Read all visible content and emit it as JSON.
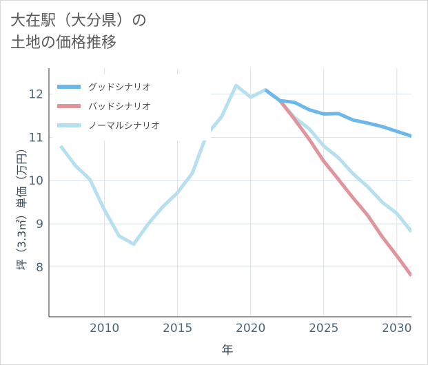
{
  "title": {
    "line1": "大在駅（大分県）の",
    "line2": "土地の価格推移"
  },
  "chart_data": {
    "type": "line",
    "xlabel": "年",
    "ylabel": "坪（3.3㎡）単価（万円）",
    "xlim": [
      2006.2,
      2031
    ],
    "ylim": [
      6.85,
      12.6
    ],
    "xticks": [
      2010,
      2015,
      2020,
      2025,
      2030
    ],
    "yticks": [
      8,
      9,
      10,
      11,
      12
    ],
    "grid": true,
    "legend_position": "top-left",
    "series": [
      {
        "name": "グッドシナリオ",
        "color": "#6cb8ea",
        "x": [
          2021,
          2022,
          2023,
          2024,
          2025,
          2026,
          2027,
          2028,
          2029,
          2030,
          2031
        ],
        "y": [
          12.1,
          11.85,
          11.81,
          11.64,
          11.54,
          11.55,
          11.4,
          11.33,
          11.25,
          11.14,
          11.03
        ]
      },
      {
        "name": "バッドシナリオ",
        "color": "#e0959d",
        "x": [
          2021,
          2022,
          2023,
          2024,
          2025,
          2026,
          2027,
          2028,
          2029,
          2030,
          2031
        ],
        "y": [
          12.1,
          11.85,
          11.42,
          10.96,
          10.45,
          10.03,
          9.6,
          9.2,
          8.7,
          8.26,
          7.8
        ]
      },
      {
        "name": "ノーマルシナリオ",
        "color": "#b6dff0",
        "x": [
          2007,
          2008,
          2009,
          2010,
          2011,
          2012,
          2013,
          2014,
          2015,
          2016,
          2017,
          2018,
          2019,
          2020,
          2021,
          2022,
          2023,
          2024,
          2025,
          2026,
          2027,
          2028,
          2029,
          2030,
          2031
        ],
        "y": [
          10.8,
          10.35,
          10.03,
          9.32,
          8.72,
          8.53,
          9.0,
          9.4,
          9.72,
          10.17,
          11.07,
          11.47,
          12.2,
          11.93,
          12.1,
          11.85,
          11.46,
          11.2,
          10.8,
          10.53,
          10.16,
          9.86,
          9.5,
          9.24,
          8.82
        ]
      }
    ]
  }
}
